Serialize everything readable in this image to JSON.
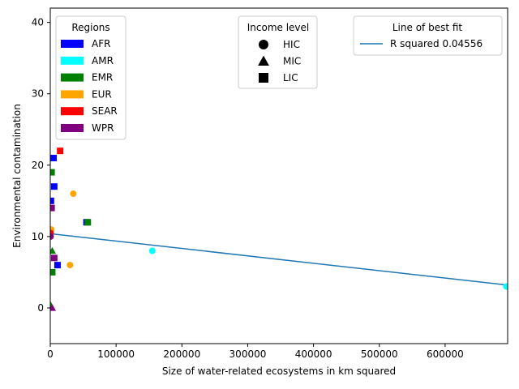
{
  "chart_data": {
    "type": "scatter",
    "xlabel": "Size of water-related ecosystems in km squared",
    "ylabel": "Environmental contamination",
    "xlim": [
      0,
      695000
    ],
    "ylim": [
      -5,
      42
    ],
    "xticks": [
      0,
      100000,
      200000,
      300000,
      400000,
      500000,
      600000
    ],
    "xtick_labels": [
      "0",
      "100000",
      "200000",
      "300000",
      "400000",
      "500000",
      "600000"
    ],
    "yticks": [
      0,
      10,
      20,
      30,
      40
    ],
    "ytick_labels": [
      "0",
      "10",
      "20",
      "30",
      "40"
    ],
    "grid": false,
    "region_colors": {
      "AFR": "#0000ff",
      "AMR": "#00ffff",
      "EMR": "#008000",
      "EUR": "#ffa500",
      "SEAR": "#ff0000",
      "WPR": "#800080"
    },
    "points": [
      {
        "x": 5000,
        "y": 21,
        "region": "AFR",
        "income": "LIC"
      },
      {
        "x": 6000,
        "y": 17,
        "region": "AFR",
        "income": "LIC"
      },
      {
        "x": 1000,
        "y": 15,
        "region": "AFR",
        "income": "LIC"
      },
      {
        "x": 55000,
        "y": 12,
        "region": "AFR",
        "income": "LIC"
      },
      {
        "x": 11000,
        "y": 6,
        "region": "AFR",
        "income": "LIC"
      },
      {
        "x": 155000,
        "y": 8,
        "region": "AMR",
        "income": "HIC"
      },
      {
        "x": 693000,
        "y": 3,
        "region": "AMR",
        "income": "HIC"
      },
      {
        "x": 2000,
        "y": 19,
        "region": "EMR",
        "income": "LIC"
      },
      {
        "x": 57000,
        "y": 12,
        "region": "EMR",
        "income": "LIC"
      },
      {
        "x": 3000,
        "y": 8,
        "region": "EMR",
        "income": "MIC"
      },
      {
        "x": 3000,
        "y": 5,
        "region": "EMR",
        "income": "LIC"
      },
      {
        "x": 0,
        "y": 0.5,
        "region": "EMR",
        "income": "MIC"
      },
      {
        "x": 35000,
        "y": 16,
        "region": "EUR",
        "income": "HIC"
      },
      {
        "x": 30000,
        "y": 6,
        "region": "EUR",
        "income": "HIC"
      },
      {
        "x": 1500,
        "y": 11,
        "region": "EUR",
        "income": "HIC"
      },
      {
        "x": 15000,
        "y": 22,
        "region": "SEAR",
        "income": "LIC"
      },
      {
        "x": 500,
        "y": 10.5,
        "region": "SEAR",
        "income": "HIC"
      },
      {
        "x": 2000,
        "y": 14,
        "region": "WPR",
        "income": "LIC"
      },
      {
        "x": 500,
        "y": 10,
        "region": "WPR",
        "income": "HIC"
      },
      {
        "x": 6000,
        "y": 7,
        "region": "WPR",
        "income": "LIC"
      },
      {
        "x": 3000,
        "y": 0,
        "region": "WPR",
        "income": "MIC"
      }
    ],
    "best_fit": {
      "x": [
        0,
        695000
      ],
      "y": [
        10.4,
        3.2
      ],
      "color": "#1f77b4"
    }
  },
  "legends": {
    "regions": {
      "title": "Regions",
      "entries": [
        {
          "label": "AFR",
          "color": "#0000ff"
        },
        {
          "label": "AMR",
          "color": "#00ffff"
        },
        {
          "label": "EMR",
          "color": "#008000"
        },
        {
          "label": "EUR",
          "color": "#ffa500"
        },
        {
          "label": "SEAR",
          "color": "#ff0000"
        },
        {
          "label": "WPR",
          "color": "#800080"
        }
      ]
    },
    "income": {
      "title": "Income level",
      "entries": [
        {
          "label": "HIC",
          "marker": "circle"
        },
        {
          "label": "MIC",
          "marker": "triangle"
        },
        {
          "label": "LIC",
          "marker": "square"
        }
      ]
    },
    "fit": {
      "title": "Line of best fit",
      "entry": "R squared 0.04556"
    }
  }
}
